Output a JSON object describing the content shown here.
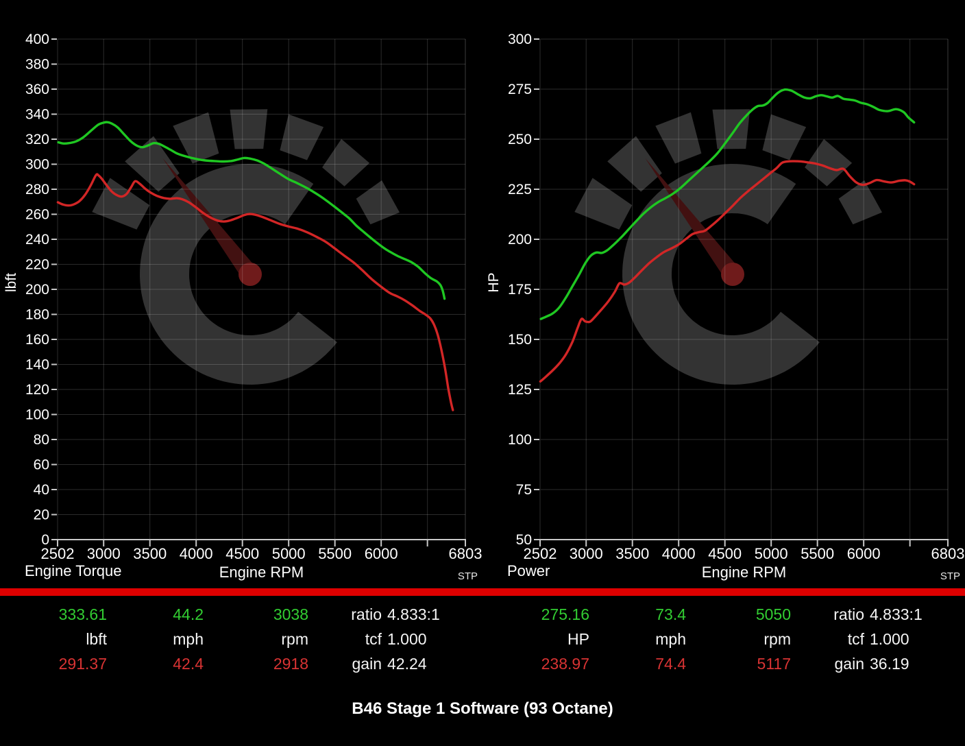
{
  "title": "B46 Stage 1 Software (93 Octane)",
  "colors": {
    "tuned": "#1fc722",
    "stock": "#d22626",
    "divider": "#dd0000",
    "grid": "rgba(255,255,255,0.17)",
    "axis": "#c8c8c8",
    "watermark_gray": "#333333",
    "watermark_needle": "#421111",
    "watermark_hub": "#6f1b1b",
    "text": "#ffffff"
  },
  "chart_data": [
    {
      "type": "line",
      "title": "Engine Torque",
      "xlabel": "Engine RPM",
      "ylabel": "lbft",
      "corner_note": "STP",
      "ylim": [
        0,
        400
      ],
      "ytick_step": 20,
      "xlim": [
        2502,
        6910
      ],
      "x_start_label": "2502",
      "x_end_label": "6803",
      "xticks_labeled": [
        3000,
        3500,
        4000,
        4500,
        5000,
        5500,
        6000
      ],
      "xticks_minor": [
        6500
      ],
      "grid": true,
      "legend_position": "none",
      "series": [
        {
          "name": "tuned",
          "color_key": "tuned",
          "points": [
            [
              2510,
              317.5
            ],
            [
              2560,
              316.6
            ],
            [
              2620,
              316.8
            ],
            [
              2700,
              318.2
            ],
            [
              2780,
              321.5
            ],
            [
              2860,
              326.5
            ],
            [
              2940,
              331.5
            ],
            [
              3000,
              333.2
            ],
            [
              3040,
              333.6
            ],
            [
              3090,
              332.4
            ],
            [
              3150,
              329.5
            ],
            [
              3220,
              324
            ],
            [
              3290,
              318.5
            ],
            [
              3360,
              314.8
            ],
            [
              3420,
              313.6
            ],
            [
              3480,
              315
            ],
            [
              3540,
              316.8
            ],
            [
              3600,
              316.2
            ],
            [
              3660,
              314
            ],
            [
              3720,
              311.6
            ],
            [
              3800,
              308.4
            ],
            [
              3900,
              306
            ],
            [
              4000,
              304.2
            ],
            [
              4100,
              303
            ],
            [
              4200,
              302.5
            ],
            [
              4300,
              302.2
            ],
            [
              4380,
              302.6
            ],
            [
              4450,
              303.8
            ],
            [
              4520,
              305
            ],
            [
              4590,
              304.4
            ],
            [
              4660,
              303
            ],
            [
              4730,
              300.6
            ],
            [
              4800,
              297.4
            ],
            [
              4900,
              292.6
            ],
            [
              5000,
              288
            ],
            [
              5100,
              284.6
            ],
            [
              5200,
              280.8
            ],
            [
              5300,
              276.4
            ],
            [
              5400,
              271.4
            ],
            [
              5500,
              265.8
            ],
            [
              5600,
              260
            ],
            [
              5660,
              256.4
            ],
            [
              5730,
              251
            ],
            [
              5800,
              246.6
            ],
            [
              5900,
              240.4
            ],
            [
              6030,
              233
            ],
            [
              6100,
              229.8
            ],
            [
              6180,
              226.6
            ],
            [
              6260,
              224
            ],
            [
              6330,
              221.6
            ],
            [
              6400,
              218
            ],
            [
              6480,
              212.4
            ],
            [
              6540,
              208.8
            ],
            [
              6600,
              206.4
            ],
            [
              6640,
              203.4
            ],
            [
              6665,
              199
            ],
            [
              6685,
              192.5
            ]
          ]
        },
        {
          "name": "stock",
          "color_key": "stock",
          "points": [
            [
              2505,
              269.6
            ],
            [
              2560,
              267.8
            ],
            [
              2620,
              267
            ],
            [
              2680,
              268
            ],
            [
              2740,
              270.6
            ],
            [
              2800,
              275.6
            ],
            [
              2860,
              283
            ],
            [
              2918,
              291.4
            ],
            [
              2945,
              291
            ],
            [
              2980,
              288.4
            ],
            [
              3030,
              283.4
            ],
            [
              3090,
              278
            ],
            [
              3150,
              275
            ],
            [
              3200,
              274.2
            ],
            [
              3250,
              276.4
            ],
            [
              3300,
              282
            ],
            [
              3340,
              286.4
            ],
            [
              3390,
              284.4
            ],
            [
              3450,
              280.4
            ],
            [
              3510,
              277.2
            ],
            [
              3580,
              274.6
            ],
            [
              3650,
              273
            ],
            [
              3720,
              272.4
            ],
            [
              3790,
              272.8
            ],
            [
              3850,
              272
            ],
            [
              3920,
              269.6
            ],
            [
              4000,
              265.4
            ],
            [
              4080,
              260.8
            ],
            [
              4160,
              257.2
            ],
            [
              4240,
              254.8
            ],
            [
              4300,
              254.2
            ],
            [
              4360,
              254.9
            ],
            [
              4440,
              257
            ],
            [
              4520,
              259.4
            ],
            [
              4580,
              260.2
            ],
            [
              4640,
              259.6
            ],
            [
              4710,
              258
            ],
            [
              4800,
              255.4
            ],
            [
              4900,
              252.4
            ],
            [
              5000,
              250.2
            ],
            [
              5090,
              248.6
            ],
            [
              5200,
              245.6
            ],
            [
              5300,
              242
            ],
            [
              5400,
              238
            ],
            [
              5500,
              232.6
            ],
            [
              5600,
              227
            ],
            [
              5700,
              221.6
            ],
            [
              5800,
              215
            ],
            [
              5900,
              208
            ],
            [
              6030,
              200.4
            ],
            [
              6100,
              196.8
            ],
            [
              6180,
              194.2
            ],
            [
              6260,
              191
            ],
            [
              6340,
              187
            ],
            [
              6420,
              182.6
            ],
            [
              6480,
              179.8
            ],
            [
              6530,
              176.8
            ],
            [
              6570,
              172
            ],
            [
              6610,
              164
            ],
            [
              6650,
              152
            ],
            [
              6690,
              137
            ],
            [
              6725,
              121
            ],
            [
              6755,
              109.5
            ],
            [
              6775,
              103.5
            ]
          ]
        }
      ]
    },
    {
      "type": "line",
      "title": "Power",
      "xlabel": "Engine RPM",
      "ylabel": "HP",
      "corner_note": "STP",
      "ylim": [
        50,
        300
      ],
      "ytick_step": 25,
      "xlim": [
        2502,
        6910
      ],
      "x_start_label": "2502",
      "x_end_label": "6803",
      "xticks_labeled": [
        3000,
        3500,
        4000,
        4500,
        5000,
        5500,
        6000
      ],
      "xticks_minor": [
        6500
      ],
      "grid": true,
      "legend_position": "none",
      "series": [
        {
          "name": "tuned",
          "color_key": "tuned",
          "points": [
            [
              2510,
              160.2
            ],
            [
              2570,
              161.4
            ],
            [
              2640,
              163
            ],
            [
              2710,
              166
            ],
            [
              2780,
              170.8
            ],
            [
              2850,
              176.4
            ],
            [
              2920,
              182
            ],
            [
              2990,
              188
            ],
            [
              3050,
              191.8
            ],
            [
              3110,
              193.4
            ],
            [
              3170,
              193.2
            ],
            [
              3230,
              194.6
            ],
            [
              3300,
              197.4
            ],
            [
              3380,
              201
            ],
            [
              3460,
              205
            ],
            [
              3540,
              209
            ],
            [
              3620,
              212.8
            ],
            [
              3700,
              216
            ],
            [
              3780,
              218.6
            ],
            [
              3860,
              220.6
            ],
            [
              3940,
              222.8
            ],
            [
              4020,
              225.6
            ],
            [
              4100,
              229
            ],
            [
              4180,
              232.4
            ],
            [
              4260,
              235.8
            ],
            [
              4340,
              239.2
            ],
            [
              4420,
              243
            ],
            [
              4500,
              247.8
            ],
            [
              4580,
              252.8
            ],
            [
              4660,
              258
            ],
            [
              4740,
              262.2
            ],
            [
              4810,
              265.2
            ],
            [
              4860,
              266.6
            ],
            [
              4910,
              266.8
            ],
            [
              4960,
              268
            ],
            [
              5010,
              270.4
            ],
            [
              5080,
              273.4
            ],
            [
              5150,
              274.8
            ],
            [
              5220,
              274.2
            ],
            [
              5290,
              272.4
            ],
            [
              5360,
              270.8
            ],
            [
              5420,
              270.4
            ],
            [
              5480,
              271.4
            ],
            [
              5540,
              272
            ],
            [
              5600,
              271.4
            ],
            [
              5660,
              270.8
            ],
            [
              5720,
              271.6
            ],
            [
              5780,
              270.2
            ],
            [
              5840,
              269.8
            ],
            [
              5900,
              269.4
            ],
            [
              5970,
              268.2
            ],
            [
              6040,
              267.4
            ],
            [
              6110,
              266
            ],
            [
              6170,
              264.6
            ],
            [
              6260,
              264
            ],
            [
              6350,
              265
            ],
            [
              6430,
              263.6
            ],
            [
              6480,
              261
            ],
            [
              6545,
              258.4
            ]
          ]
        },
        {
          "name": "stock",
          "color_key": "stock",
          "points": [
            [
              2505,
              129
            ],
            [
              2570,
              131.6
            ],
            [
              2640,
              134.6
            ],
            [
              2710,
              138
            ],
            [
              2780,
              142.4
            ],
            [
              2850,
              148.6
            ],
            [
              2910,
              156
            ],
            [
              2950,
              160.2
            ],
            [
              2990,
              159
            ],
            [
              3040,
              158.8
            ],
            [
              3090,
              161
            ],
            [
              3160,
              164.6
            ],
            [
              3240,
              169
            ],
            [
              3310,
              173.8
            ],
            [
              3360,
              178
            ],
            [
              3410,
              177.4
            ],
            [
              3460,
              178.2
            ],
            [
              3520,
              180.6
            ],
            [
              3600,
              184.4
            ],
            [
              3680,
              188
            ],
            [
              3760,
              191
            ],
            [
              3840,
              193.6
            ],
            [
              3920,
              195.4
            ],
            [
              4000,
              197.4
            ],
            [
              4080,
              200.2
            ],
            [
              4150,
              202.6
            ],
            [
              4220,
              203.6
            ],
            [
              4280,
              204.2
            ],
            [
              4350,
              206.6
            ],
            [
              4430,
              209.8
            ],
            [
              4510,
              213.4
            ],
            [
              4590,
              217
            ],
            [
              4670,
              220.8
            ],
            [
              4750,
              224
            ],
            [
              4830,
              227
            ],
            [
              4910,
              230
            ],
            [
              4990,
              233
            ],
            [
              5060,
              235.6
            ],
            [
              5117,
              238.2
            ],
            [
              5180,
              238.9
            ],
            [
              5250,
              239
            ],
            [
              5320,
              238.9
            ],
            [
              5400,
              238.4
            ],
            [
              5480,
              237.8
            ],
            [
              5560,
              236.8
            ],
            [
              5640,
              235.4
            ],
            [
              5710,
              234.6
            ],
            [
              5780,
              235.2
            ],
            [
              5850,
              231.5
            ],
            [
              5920,
              228.4
            ],
            [
              5990,
              227.2
            ],
            [
              6060,
              228
            ],
            [
              6140,
              229.6
            ],
            [
              6220,
              228.9
            ],
            [
              6300,
              228.4
            ],
            [
              6380,
              229.2
            ],
            [
              6450,
              229.5
            ],
            [
              6500,
              228.8
            ],
            [
              6545,
              227.5
            ]
          ]
        }
      ]
    }
  ],
  "readouts": [
    {
      "tuned": [
        "333.61",
        "44.2",
        "3038"
      ],
      "units": [
        "lbft",
        "mph",
        "rpm"
      ],
      "stock": [
        "291.37",
        "42.4",
        "2918"
      ],
      "meta_labels": [
        "ratio",
        "tcf",
        "gain"
      ],
      "meta_values": [
        "4.833:1",
        "1.000",
        "42.24"
      ]
    },
    {
      "tuned": [
        "275.16",
        "73.4",
        "5050"
      ],
      "units": [
        "HP",
        "mph",
        "rpm"
      ],
      "stock": [
        "238.97",
        "74.4",
        "5117"
      ],
      "meta_labels": [
        "ratio",
        "tcf",
        "gain"
      ],
      "meta_values": [
        "4.833:1",
        "1.000",
        "36.19"
      ]
    }
  ]
}
